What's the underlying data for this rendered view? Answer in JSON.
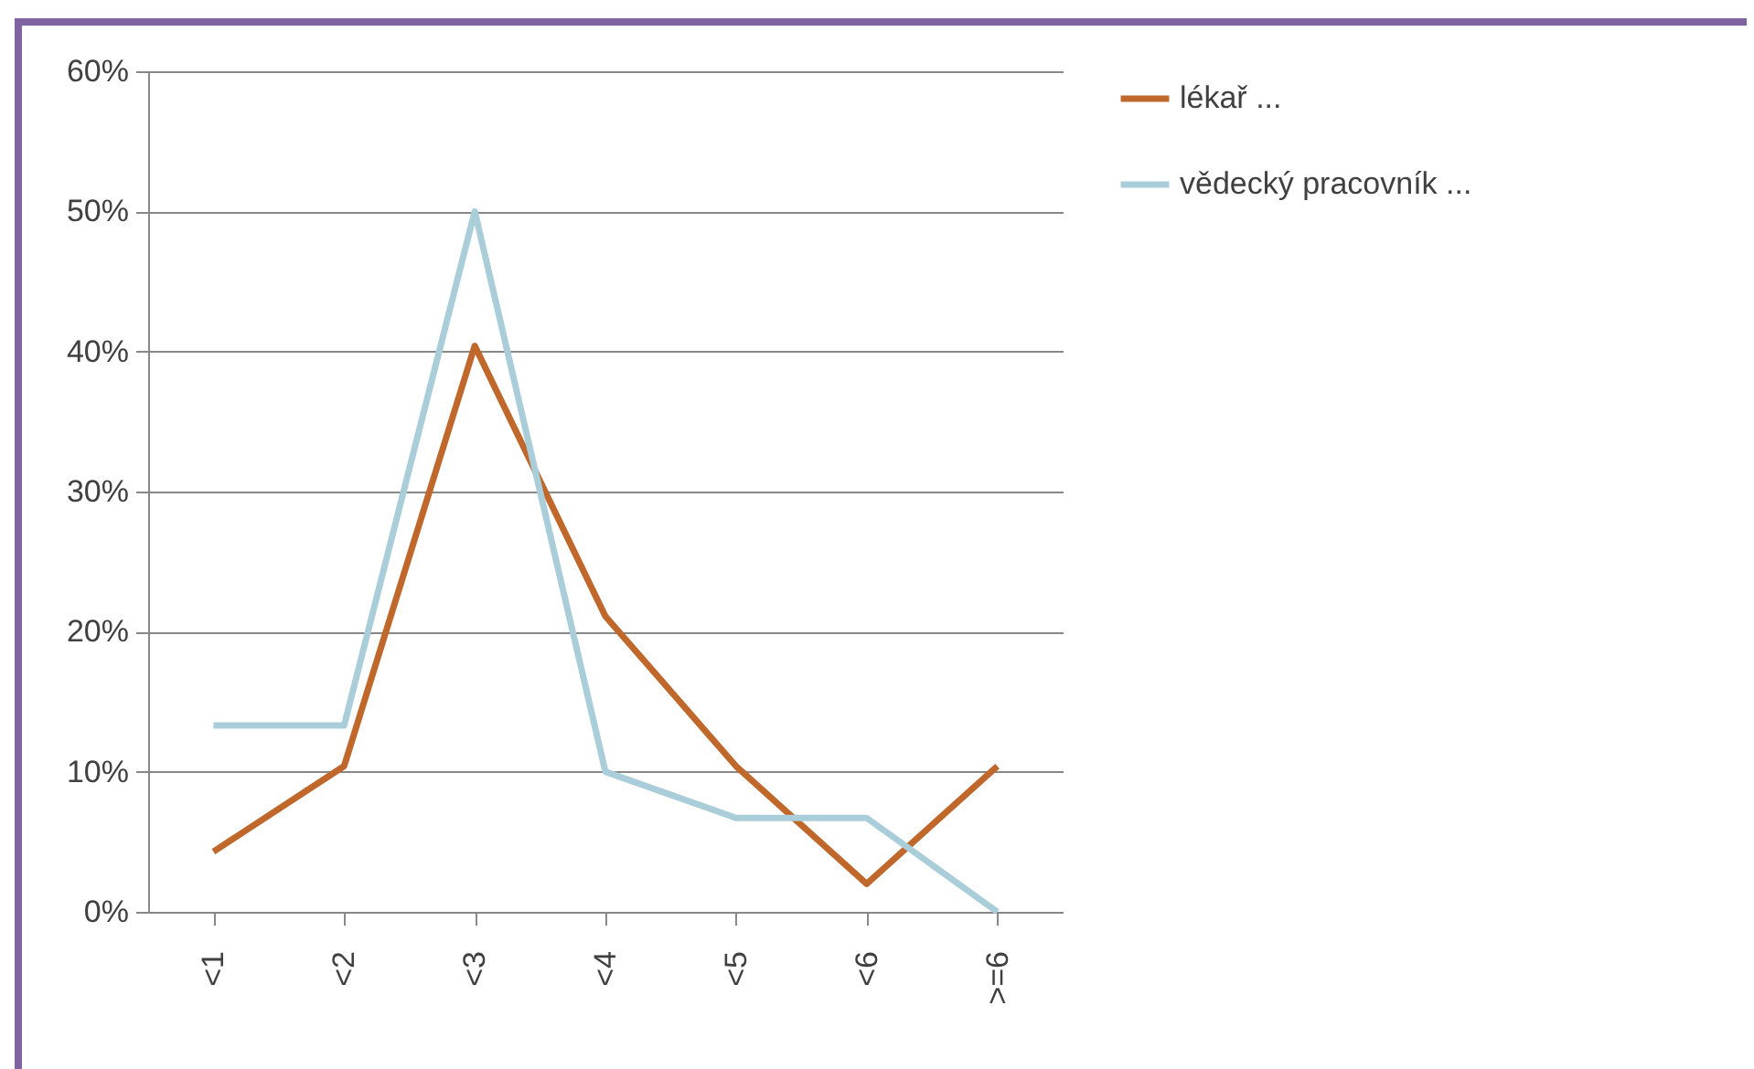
{
  "chart_data": {
    "type": "line",
    "categories": [
      "<1",
      "<2",
      "<3",
      "<4",
      "<5",
      "<6",
      ">=6"
    ],
    "series": [
      {
        "name": "lékař ...",
        "color": "#c0672b",
        "values": [
          4.3,
          10.4,
          40.4,
          21.1,
          10.4,
          2.0,
          10.4
        ]
      },
      {
        "name": "vědecký  pracovník ...",
        "color": "#a9cdd9",
        "values": [
          13.3,
          13.3,
          50,
          10,
          6.7,
          6.7,
          0
        ]
      }
    ],
    "ylim": [
      0,
      60
    ],
    "yticks": [
      {
        "value": 0,
        "label": "0%"
      },
      {
        "value": 10,
        "label": "10%"
      },
      {
        "value": 20,
        "label": "20%"
      },
      {
        "value": 30,
        "label": "30%"
      },
      {
        "value": 40,
        "label": "40%"
      },
      {
        "value": 50,
        "label": "50%"
      },
      {
        "value": 60,
        "label": "60%"
      }
    ],
    "grid": "y",
    "legend": "right",
    "marker": "none",
    "line_style": "solid"
  }
}
